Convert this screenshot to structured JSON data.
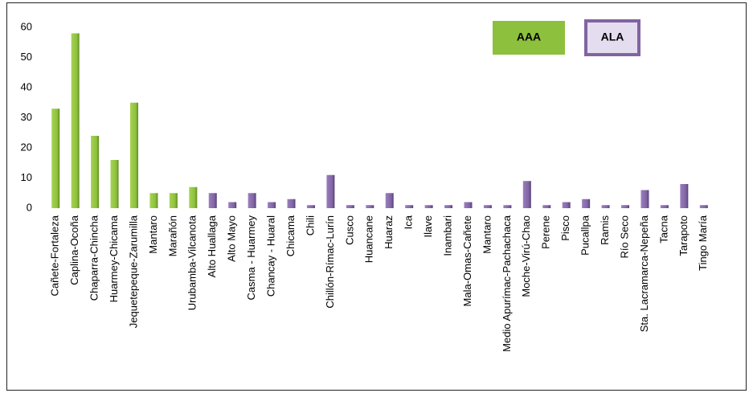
{
  "chart_data": {
    "type": "bar",
    "categories": [
      "Cañete-Fortaleza",
      "Caplina-Ocoña",
      "Chaparra-Chincha",
      "Huarmey-Chicama",
      "Jequetepeque-Zarumilla",
      "Mantaro",
      "Marañón",
      "Urubamba-Vilcanota",
      "Alto Huallaga",
      "Alto Mayo",
      "Casma - Huarmey",
      "Chancay - Huaral",
      "Chicama",
      "Chili",
      "Chillón-Rímac-Lurín",
      "Cusco",
      "Huancane",
      "Huaraz",
      "Ica",
      "Ilave",
      "Inambari",
      "Mala-Omas-Cañete",
      "Mantaro",
      "Medio Apurímac-Pachachaca",
      "Moche-Virú-Chao",
      "Perene",
      "Pisco",
      "Pucallpa",
      "Ramis",
      "Río Seco",
      "Sta. Lacramarca-Nepeña",
      "Tacna",
      "Tarapoto",
      "Tingo María"
    ],
    "series": [
      {
        "name": "AAA",
        "color": "#8dc03c",
        "values": [
          33,
          58,
          24,
          16,
          35,
          5,
          5,
          7,
          null,
          null,
          null,
          null,
          null,
          null,
          null,
          null,
          null,
          null,
          null,
          null,
          null,
          null,
          null,
          null,
          null,
          null,
          null,
          null,
          null,
          null,
          null,
          null,
          null,
          null
        ]
      },
      {
        "name": "ALA",
        "color": "#8064a2",
        "values": [
          null,
          null,
          null,
          null,
          null,
          null,
          null,
          null,
          5,
          2,
          5,
          2,
          3,
          1,
          11,
          1,
          1,
          5,
          1,
          1,
          1,
          2,
          1,
          1,
          9,
          1,
          2,
          3,
          1,
          1,
          6,
          1,
          8,
          1
        ]
      }
    ],
    "ylim": [
      0,
      60
    ],
    "yticks": [
      0,
      10,
      20,
      30,
      40,
      50,
      60
    ],
    "grid": false
  }
}
